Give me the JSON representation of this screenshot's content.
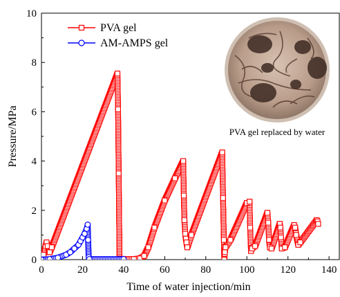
{
  "chart_data": {
    "type": "line",
    "xlabel": "Time of water injection/min",
    "ylabel": "Pressure/MPa",
    "xlim": [
      0,
      145
    ],
    "ylim": [
      0,
      10
    ],
    "xticks": [
      "0",
      "20",
      "40",
      "60",
      "80",
      "100",
      "120",
      "140"
    ],
    "yticks": [
      "0",
      "2",
      "4",
      "6",
      "8",
      "10"
    ],
    "legend_position": "top-left",
    "inset_caption": "PVA gel replaced by water",
    "series": [
      {
        "name": "PVA gel",
        "color": "#ff0000",
        "marker": "open-square",
        "x": [
          0,
          1,
          2,
          2.5,
          3,
          4,
          5,
          37,
          37.3,
          37.6,
          38,
          40,
          45,
          48,
          50,
          52,
          55,
          60,
          65,
          69,
          69.3,
          69.6,
          70,
          70.3,
          70.6,
          71,
          73,
          88,
          88.4,
          88.8,
          89,
          89.3,
          89.6,
          92,
          100,
          101.3,
          101.6,
          102,
          102.5,
          104,
          110,
          110.4,
          110.8,
          111.2,
          112,
          116,
          116.3,
          116.6,
          117,
          118.5,
          123,
          123.5,
          124,
          125,
          126,
          134,
          134.4,
          134.7
        ],
        "y": [
          0.0,
          0.2,
          0.55,
          0.7,
          0.55,
          0.3,
          0.5,
          7.55,
          6.1,
          3.5,
          0.05,
          0.02,
          0.02,
          0.05,
          0.15,
          0.5,
          1.3,
          2.4,
          3.3,
          4.0,
          2.6,
          1.6,
          1.05,
          0.85,
          0.7,
          0.5,
          1.0,
          4.35,
          2.5,
          0.8,
          0.0,
          0.3,
          0.5,
          0.8,
          2.3,
          2.35,
          1.3,
          0.35,
          0.45,
          0.55,
          1.9,
          1.5,
          0.8,
          0.5,
          0.45,
          1.45,
          1.3,
          0.9,
          0.45,
          0.5,
          1.4,
          1.3,
          1.0,
          0.6,
          0.7,
          1.6,
          1.55,
          1.45
        ]
      },
      {
        "name": "AM-AMPS gel",
        "color": "#0000ff",
        "marker": "open-circle",
        "x": [
          0,
          4,
          8,
          12,
          14,
          16,
          18,
          19,
          20,
          21,
          22,
          22.5,
          22.7,
          23.0,
          23.3,
          40
        ],
        "y": [
          0.0,
          0.02,
          0.08,
          0.2,
          0.3,
          0.45,
          0.6,
          0.75,
          0.9,
          1.05,
          1.25,
          1.42,
          0.8,
          0.1,
          0.02,
          0.02
        ]
      }
    ]
  }
}
